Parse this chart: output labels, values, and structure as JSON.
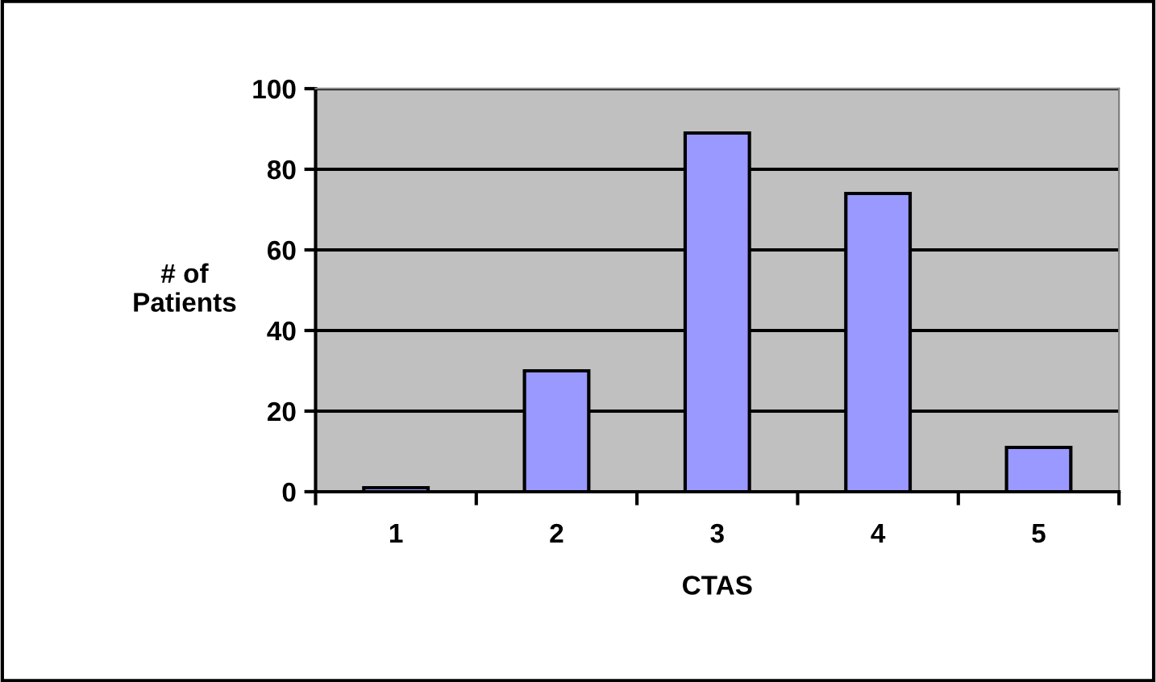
{
  "chart_data": {
    "type": "bar",
    "xlabel": "CTAS",
    "ylabel": "# of\nPatients",
    "categories": [
      "1",
      "2",
      "3",
      "4",
      "5"
    ],
    "values": [
      1,
      30,
      89,
      74,
      11
    ],
    "color": "#9999ff",
    "ylim": [
      0,
      100
    ],
    "yticks": [
      0,
      20,
      40,
      60,
      80,
      100
    ],
    "grid": "y"
  }
}
